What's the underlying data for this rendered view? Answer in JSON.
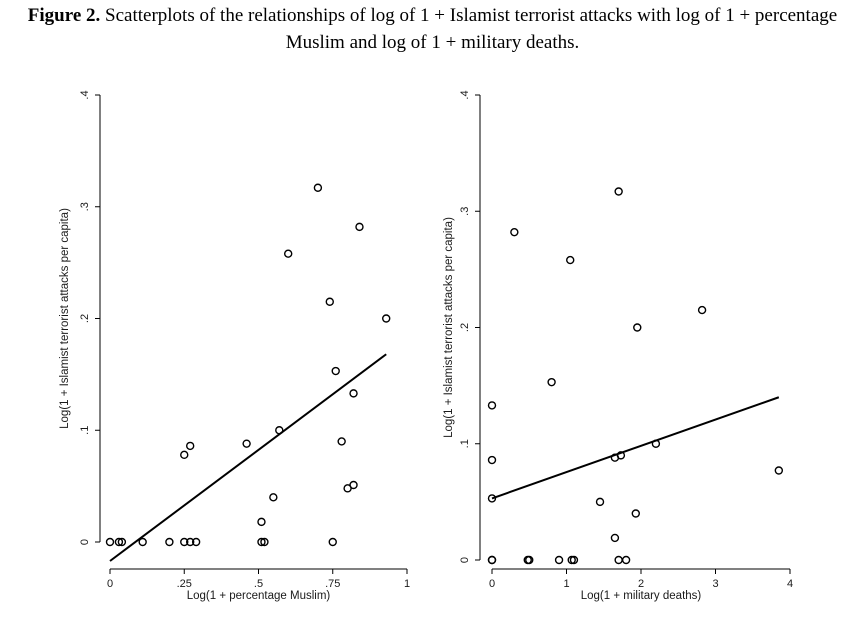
{
  "caption": {
    "label": "Figure 2.",
    "text": " Scatterplots of the relationships of log of 1 + Islamist terrorist attacks with log of 1 + percentage Muslim and log of 1 + military deaths."
  },
  "colors": {
    "axis": "#000000",
    "marker": "#000000",
    "fit_line": "#000000",
    "background": "#ffffff"
  },
  "chart_data": [
    {
      "type": "scatter",
      "title": "",
      "xlabel": "Log(1 + percentage Muslim)",
      "ylabel": "Log(1 + Islamist terrorist attacks per capita)",
      "xlim": [
        0,
        1
      ],
      "ylim": [
        0,
        0.4
      ],
      "xticks": [
        0,
        0.25,
        0.5,
        0.75,
        1
      ],
      "xtick_labels": [
        "0",
        ".25",
        ".5",
        ".75",
        "1"
      ],
      "yticks": [
        0,
        0.1,
        0.2,
        0.3,
        0.4
      ],
      "ytick_labels": [
        "0",
        ".1",
        ".2",
        ".3",
        ".4"
      ],
      "ytick_rotation": "vertical",
      "grid": false,
      "marker": "hollow circle",
      "points": [
        {
          "x": 0.0,
          "y": 0.0
        },
        {
          "x": 0.03,
          "y": 0.0
        },
        {
          "x": 0.04,
          "y": 0.0
        },
        {
          "x": 0.11,
          "y": 0.0
        },
        {
          "x": 0.2,
          "y": 0.0
        },
        {
          "x": 0.25,
          "y": 0.0
        },
        {
          "x": 0.27,
          "y": 0.0
        },
        {
          "x": 0.29,
          "y": 0.0
        },
        {
          "x": 0.51,
          "y": 0.0
        },
        {
          "x": 0.52,
          "y": 0.0
        },
        {
          "x": 0.75,
          "y": 0.0
        },
        {
          "x": 0.51,
          "y": 0.018
        },
        {
          "x": 0.55,
          "y": 0.04
        },
        {
          "x": 0.8,
          "y": 0.048
        },
        {
          "x": 0.82,
          "y": 0.051
        },
        {
          "x": 0.25,
          "y": 0.078
        },
        {
          "x": 0.27,
          "y": 0.086
        },
        {
          "x": 0.46,
          "y": 0.088
        },
        {
          "x": 0.57,
          "y": 0.1
        },
        {
          "x": 0.78,
          "y": 0.09
        },
        {
          "x": 0.82,
          "y": 0.133
        },
        {
          "x": 0.76,
          "y": 0.153
        },
        {
          "x": 0.93,
          "y": 0.2
        },
        {
          "x": 0.74,
          "y": 0.215
        },
        {
          "x": 0.6,
          "y": 0.258
        },
        {
          "x": 0.84,
          "y": 0.282
        },
        {
          "x": 0.7,
          "y": 0.317
        }
      ],
      "fit_line": {
        "x": [
          0.0,
          0.93
        ],
        "y": [
          -0.017,
          0.168
        ]
      }
    },
    {
      "type": "scatter",
      "title": "",
      "xlabel": "Log(1 + military deaths)",
      "ylabel": "Log(1 + Islamist terrorist attacks per capita)",
      "xlim": [
        0,
        4
      ],
      "ylim": [
        0,
        0.4
      ],
      "xticks": [
        0,
        1,
        2,
        3,
        4
      ],
      "xtick_labels": [
        "0",
        "1",
        "2",
        "3",
        "4"
      ],
      "yticks": [
        0,
        0.1,
        0.2,
        0.3,
        0.4
      ],
      "ytick_labels": [
        "0",
        ".1",
        ".2",
        ".3",
        ".4"
      ],
      "ytick_rotation": "vertical",
      "grid": false,
      "marker": "hollow circle",
      "points": [
        {
          "x": 0.0,
          "y": 0.0
        },
        {
          "x": 0.0,
          "y": 0.0
        },
        {
          "x": 0.48,
          "y": 0.0
        },
        {
          "x": 0.5,
          "y": 0.0
        },
        {
          "x": 0.9,
          "y": 0.0
        },
        {
          "x": 1.07,
          "y": 0.0
        },
        {
          "x": 1.1,
          "y": 0.0
        },
        {
          "x": 1.7,
          "y": 0.0
        },
        {
          "x": 1.8,
          "y": 0.0
        },
        {
          "x": 1.65,
          "y": 0.019
        },
        {
          "x": 1.45,
          "y": 0.05
        },
        {
          "x": 1.93,
          "y": 0.04
        },
        {
          "x": 0.0,
          "y": 0.053
        },
        {
          "x": 3.85,
          "y": 0.077
        },
        {
          "x": 0.0,
          "y": 0.086
        },
        {
          "x": 1.65,
          "y": 0.088
        },
        {
          "x": 1.73,
          "y": 0.09
        },
        {
          "x": 2.2,
          "y": 0.1
        },
        {
          "x": 0.0,
          "y": 0.133
        },
        {
          "x": 0.8,
          "y": 0.153
        },
        {
          "x": 1.95,
          "y": 0.2
        },
        {
          "x": 2.82,
          "y": 0.215
        },
        {
          "x": 1.05,
          "y": 0.258
        },
        {
          "x": 0.3,
          "y": 0.282
        },
        {
          "x": 1.7,
          "y": 0.317
        }
      ],
      "fit_line": {
        "x": [
          0.0,
          3.85
        ],
        "y": [
          0.053,
          0.14
        ]
      }
    }
  ]
}
